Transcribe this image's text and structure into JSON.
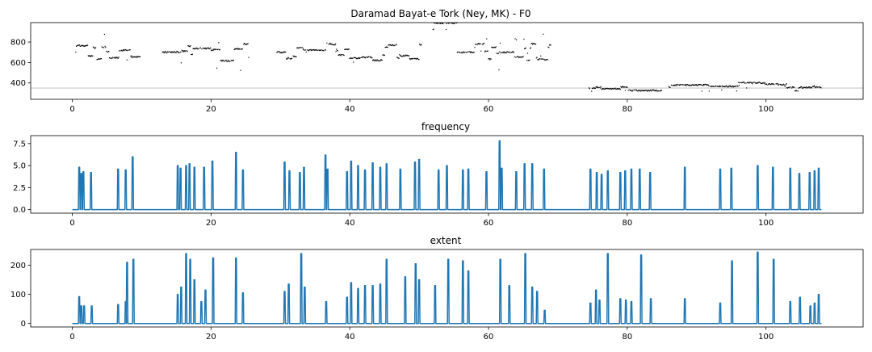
{
  "chart_data": [
    {
      "type": "scatter",
      "title": "Daramad Bayat-e Tork (Ney, MK) - F0",
      "xlim": [
        -6,
        114
      ],
      "ylim": [
        240,
        990
      ],
      "xticks": [
        0,
        20,
        40,
        60,
        80,
        100
      ],
      "yticks": [
        400,
        600,
        800
      ],
      "marker_color": "#000000",
      "reference_line": {
        "y": 350,
        "color": "#c8c8c8"
      },
      "segments": [
        {
          "x": [
            0.5,
            9.8
          ],
          "y": 700
        },
        {
          "x": [
            13.0,
            25.5
          ],
          "y": 700
        },
        {
          "x": [
            29.5,
            38.0
          ],
          "y": 700
        },
        {
          "x": [
            38.0,
            50.5
          ],
          "y": 710
        },
        {
          "x": [
            52.0,
            55.5
          ],
          "y": 920
        },
        {
          "x": [
            55.5,
            61.5
          ],
          "y": 700
        },
        {
          "x": [
            61.5,
            69.0
          ],
          "y": 700
        },
        {
          "x": [
            74.5,
            85.0
          ],
          "y": 350
        },
        {
          "x": [
            86.0,
            91.0
          ],
          "y": 360
        },
        {
          "x": [
            91.0,
            103.0
          ],
          "y": 380
        },
        {
          "x": [
            103.0,
            108.0
          ],
          "y": 350
        }
      ]
    },
    {
      "type": "line",
      "title": "frequency",
      "xlim": [
        -6,
        114
      ],
      "ylim": [
        -0.4,
        8.4
      ],
      "xticks": [
        0,
        20,
        40,
        60,
        80,
        100
      ],
      "yticks": [
        0.0,
        2.5,
        5.0,
        7.5
      ],
      "ytick_labels": [
        "0.0",
        "2.5",
        "5.0",
        "7.5"
      ],
      "color": "#1f77b4",
      "baseline": 0,
      "x_range": [
        0,
        108
      ],
      "spikes": [
        [
          1.0,
          4.8
        ],
        [
          1.3,
          4.1
        ],
        [
          1.6,
          4.3
        ],
        [
          2.7,
          4.2
        ],
        [
          6.6,
          4.6
        ],
        [
          7.7,
          4.5
        ],
        [
          8.7,
          6.0
        ],
        [
          15.2,
          5.0
        ],
        [
          15.6,
          4.7
        ],
        [
          16.4,
          5.0
        ],
        [
          16.9,
          5.2
        ],
        [
          17.6,
          4.8
        ],
        [
          19.0,
          4.8
        ],
        [
          20.2,
          5.5
        ],
        [
          23.6,
          6.5
        ],
        [
          24.6,
          4.5
        ],
        [
          30.6,
          5.4
        ],
        [
          31.3,
          4.4
        ],
        [
          32.8,
          4.2
        ],
        [
          33.4,
          4.8
        ],
        [
          36.5,
          6.2
        ],
        [
          36.8,
          4.6
        ],
        [
          39.6,
          4.3
        ],
        [
          40.2,
          5.5
        ],
        [
          41.2,
          5.0
        ],
        [
          42.2,
          4.5
        ],
        [
          43.3,
          5.3
        ],
        [
          44.4,
          4.8
        ],
        [
          45.3,
          5.2
        ],
        [
          47.3,
          4.6
        ],
        [
          49.4,
          5.4
        ],
        [
          50.0,
          5.7
        ],
        [
          52.8,
          4.5
        ],
        [
          54.0,
          5.0
        ],
        [
          56.3,
          4.5
        ],
        [
          57.1,
          4.6
        ],
        [
          59.7,
          4.3
        ],
        [
          61.6,
          7.8
        ],
        [
          61.9,
          4.7
        ],
        [
          64.0,
          4.3
        ],
        [
          65.2,
          5.2
        ],
        [
          66.3,
          5.2
        ],
        [
          68.0,
          4.6
        ],
        [
          74.7,
          4.6
        ],
        [
          75.6,
          4.2
        ],
        [
          76.3,
          4.0
        ],
        [
          77.2,
          4.4
        ],
        [
          79.0,
          4.2
        ],
        [
          79.7,
          4.4
        ],
        [
          80.6,
          4.6
        ],
        [
          81.8,
          4.6
        ],
        [
          83.3,
          4.2
        ],
        [
          88.3,
          4.8
        ],
        [
          93.4,
          4.6
        ],
        [
          95.0,
          4.7
        ],
        [
          98.8,
          5.0
        ],
        [
          101.0,
          4.8
        ],
        [
          103.5,
          4.7
        ],
        [
          104.8,
          4.1
        ],
        [
          106.3,
          4.2
        ],
        [
          107.0,
          4.4
        ],
        [
          107.6,
          4.7
        ]
      ]
    },
    {
      "type": "line",
      "title": "extent",
      "xlim": [
        -6,
        114
      ],
      "ylim": [
        -12,
        254
      ],
      "xticks": [
        0,
        20,
        40,
        60,
        80,
        100
      ],
      "yticks": [
        0,
        100,
        200
      ],
      "ytick_labels": [
        "0",
        "100",
        "200"
      ],
      "color": "#1f77b4",
      "baseline": 0,
      "x_range": [
        0,
        108
      ],
      "spikes": [
        [
          1.0,
          92
        ],
        [
          1.3,
          60
        ],
        [
          1.7,
          60
        ],
        [
          2.8,
          60
        ],
        [
          6.6,
          65
        ],
        [
          7.7,
          75
        ],
        [
          7.9,
          210
        ],
        [
          8.8,
          220
        ],
        [
          15.2,
          100
        ],
        [
          15.7,
          125
        ],
        [
          16.4,
          240
        ],
        [
          17.0,
          220
        ],
        [
          17.6,
          150
        ],
        [
          18.6,
          75
        ],
        [
          19.2,
          115
        ],
        [
          20.3,
          225
        ],
        [
          23.6,
          225
        ],
        [
          24.6,
          105
        ],
        [
          30.6,
          110
        ],
        [
          31.2,
          135
        ],
        [
          33.0,
          240
        ],
        [
          33.5,
          125
        ],
        [
          36.6,
          75
        ],
        [
          39.6,
          90
        ],
        [
          40.2,
          140
        ],
        [
          41.2,
          120
        ],
        [
          42.2,
          130
        ],
        [
          43.3,
          130
        ],
        [
          44.4,
          135
        ],
        [
          45.3,
          220
        ],
        [
          48.0,
          160
        ],
        [
          49.5,
          205
        ],
        [
          50.0,
          150
        ],
        [
          52.3,
          130
        ],
        [
          54.2,
          220
        ],
        [
          56.3,
          215
        ],
        [
          57.1,
          180
        ],
        [
          61.7,
          220
        ],
        [
          63.0,
          130
        ],
        [
          65.3,
          240
        ],
        [
          66.3,
          125
        ],
        [
          67.0,
          110
        ],
        [
          68.1,
          45
        ],
        [
          74.7,
          70
        ],
        [
          75.5,
          115
        ],
        [
          76.0,
          80
        ],
        [
          77.2,
          240
        ],
        [
          79.0,
          85
        ],
        [
          79.8,
          80
        ],
        [
          80.6,
          75
        ],
        [
          82.0,
          235
        ],
        [
          83.4,
          85
        ],
        [
          88.3,
          85
        ],
        [
          93.4,
          70
        ],
        [
          95.1,
          215
        ],
        [
          98.8,
          245
        ],
        [
          101.1,
          220
        ],
        [
          103.5,
          75
        ],
        [
          104.9,
          90
        ],
        [
          106.4,
          60
        ],
        [
          107.0,
          70
        ],
        [
          107.6,
          100
        ]
      ]
    }
  ]
}
